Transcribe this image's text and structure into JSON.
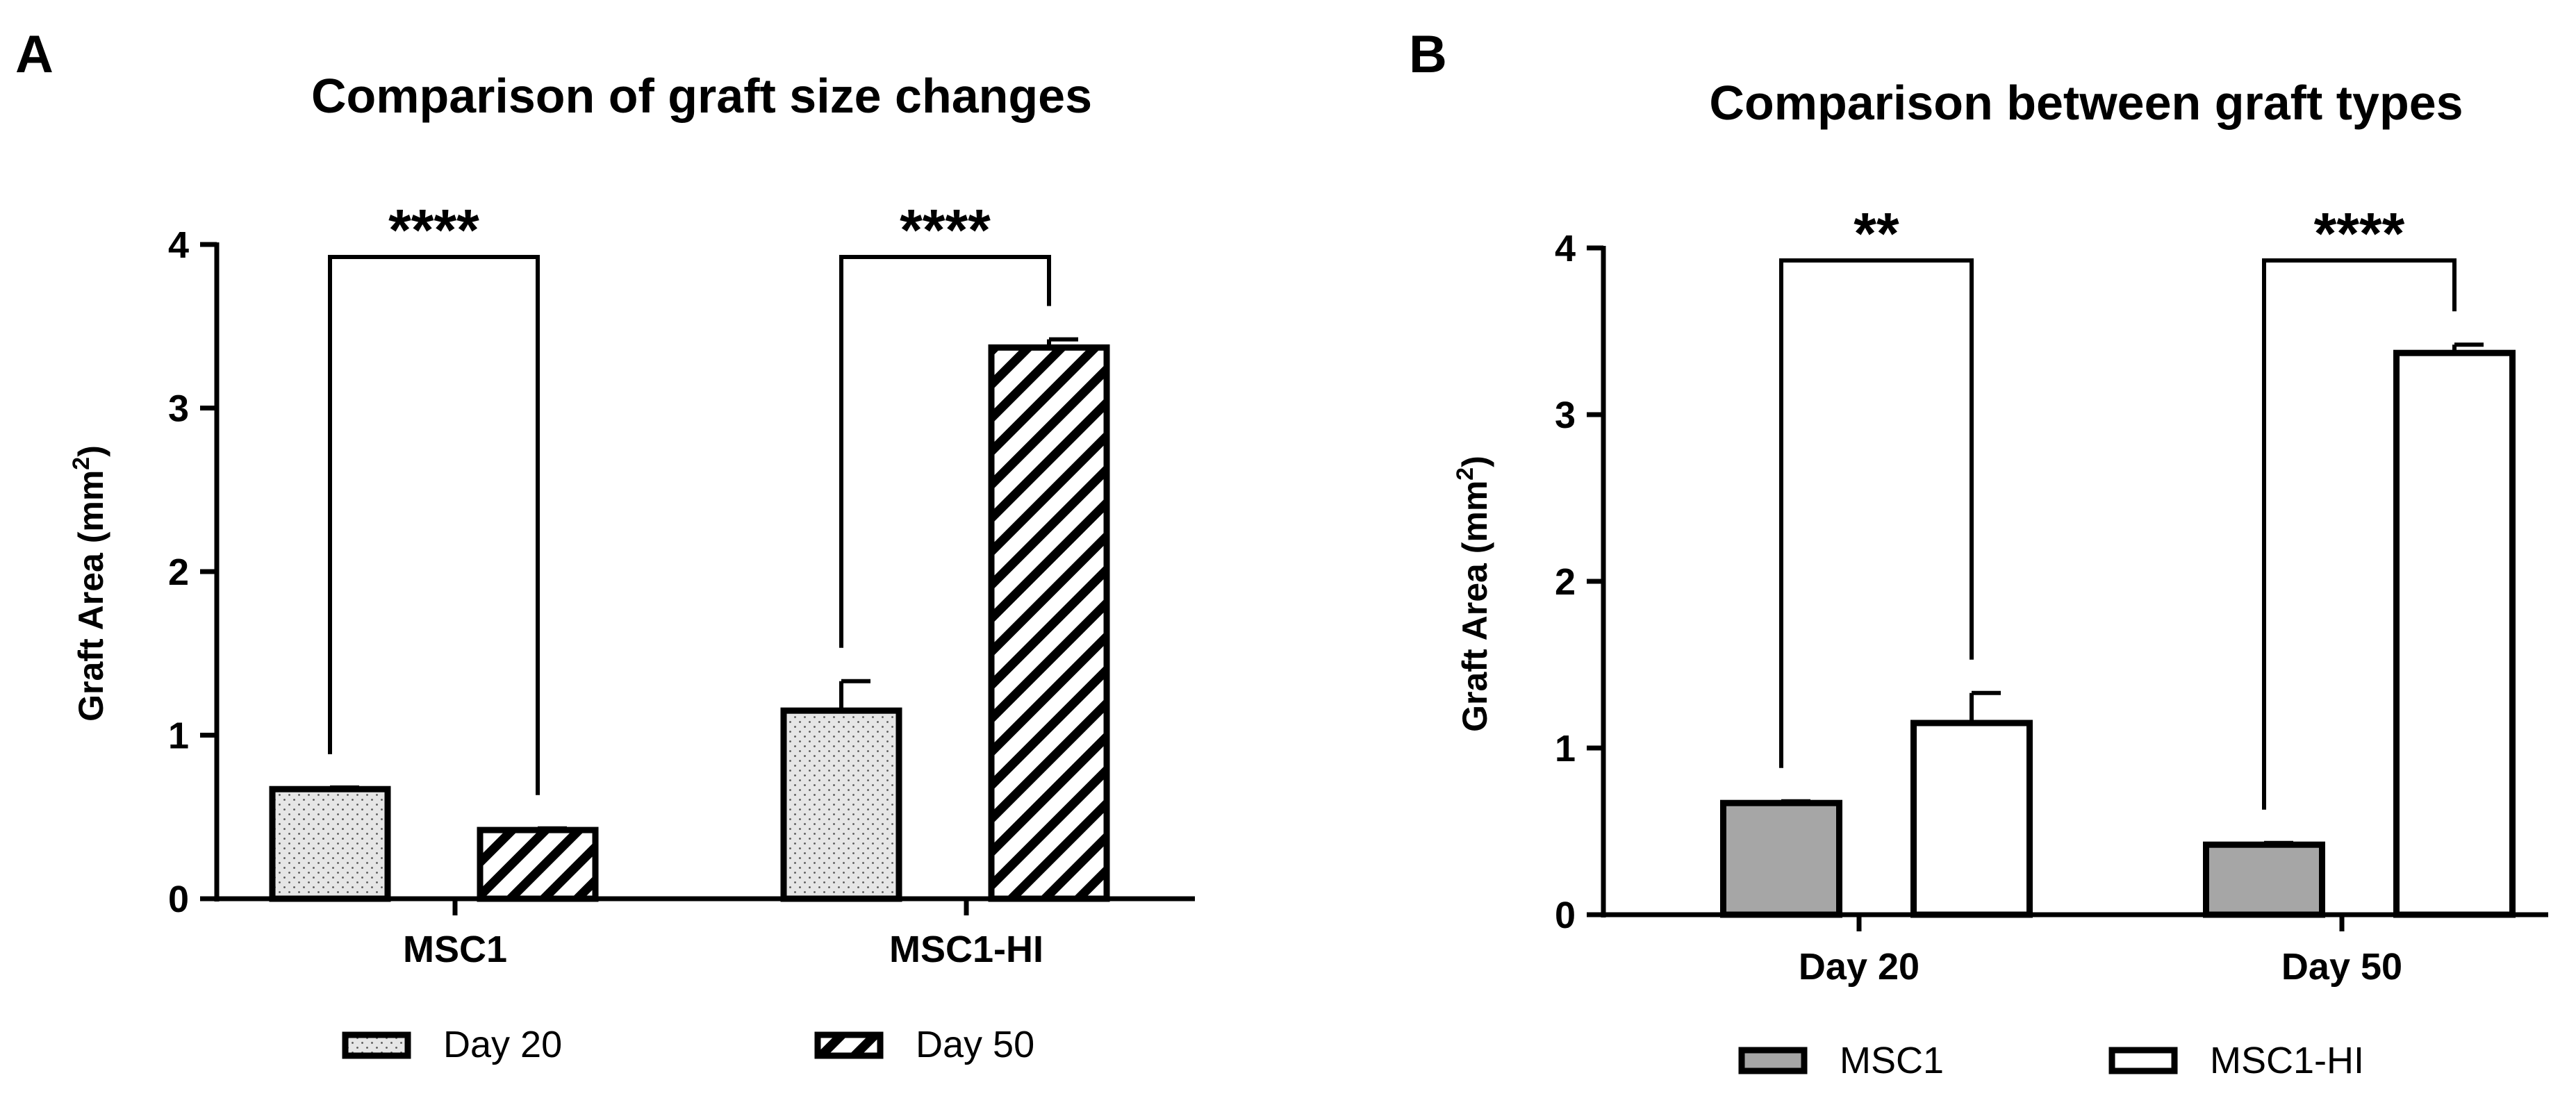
{
  "panels": [
    {
      "letter": "A",
      "title": "Comparison of graft size changes",
      "ylabel_main": "Graft Area (mm",
      "ylabel_sup": "2",
      "ylabel_end": ")",
      "legend": [
        {
          "label": "Day 20",
          "fill": "dots"
        },
        {
          "label": "Day 50",
          "fill": "hatch"
        }
      ]
    },
    {
      "letter": "B",
      "title": "Comparison between graft types",
      "ylabel_main": "Graft Area (mm",
      "ylabel_sup": "2",
      "ylabel_end": ")",
      "legend": [
        {
          "label": "MSC1",
          "fill": "gray"
        },
        {
          "label": "MSC1-HI",
          "fill": "white"
        }
      ]
    }
  ],
  "colors": {
    "stroke": "#000000",
    "gray_fill": "#a6a6a6",
    "dotted_fill": "#e6e6e6",
    "white_fill": "#ffffff"
  },
  "chart_data": [
    {
      "type": "bar",
      "title": "Comparison of graft size changes",
      "xlabel": "",
      "ylabel": "Graft Area (mm2)",
      "ylim": [
        0,
        4
      ],
      "yticks": [
        0,
        1,
        2,
        3,
        4
      ],
      "categories": [
        "MSC1",
        "MSC1-HI"
      ],
      "series": [
        {
          "name": "Day 20",
          "values": [
            0.67,
            1.15
          ],
          "errors": [
            0.01,
            0.18
          ],
          "fill": "dots"
        },
        {
          "name": "Day 50",
          "values": [
            0.42,
            3.37
          ],
          "errors": [
            0.01,
            0.05
          ],
          "fill": "hatch"
        }
      ],
      "significance": [
        {
          "category": "MSC1",
          "label": "****"
        },
        {
          "category": "MSC1-HI",
          "label": "****"
        }
      ],
      "legend_position": "bottom"
    },
    {
      "type": "bar",
      "title": "Comparison between graft types",
      "xlabel": "",
      "ylabel": "Graft Area (mm2)",
      "ylim": [
        0,
        4
      ],
      "yticks": [
        0,
        1,
        2,
        3,
        4
      ],
      "categories": [
        "Day 20",
        "Day 50"
      ],
      "series": [
        {
          "name": "MSC1",
          "values": [
            0.67,
            0.42
          ],
          "errors": [
            0.01,
            0.01
          ],
          "fill": "gray"
        },
        {
          "name": "MSC1-HI",
          "values": [
            1.15,
            3.37
          ],
          "errors": [
            0.18,
            0.05
          ],
          "fill": "white"
        }
      ],
      "significance": [
        {
          "category": "Day 20",
          "label": "**"
        },
        {
          "category": "Day 50",
          "label": "****"
        }
      ],
      "legend_position": "bottom"
    }
  ]
}
